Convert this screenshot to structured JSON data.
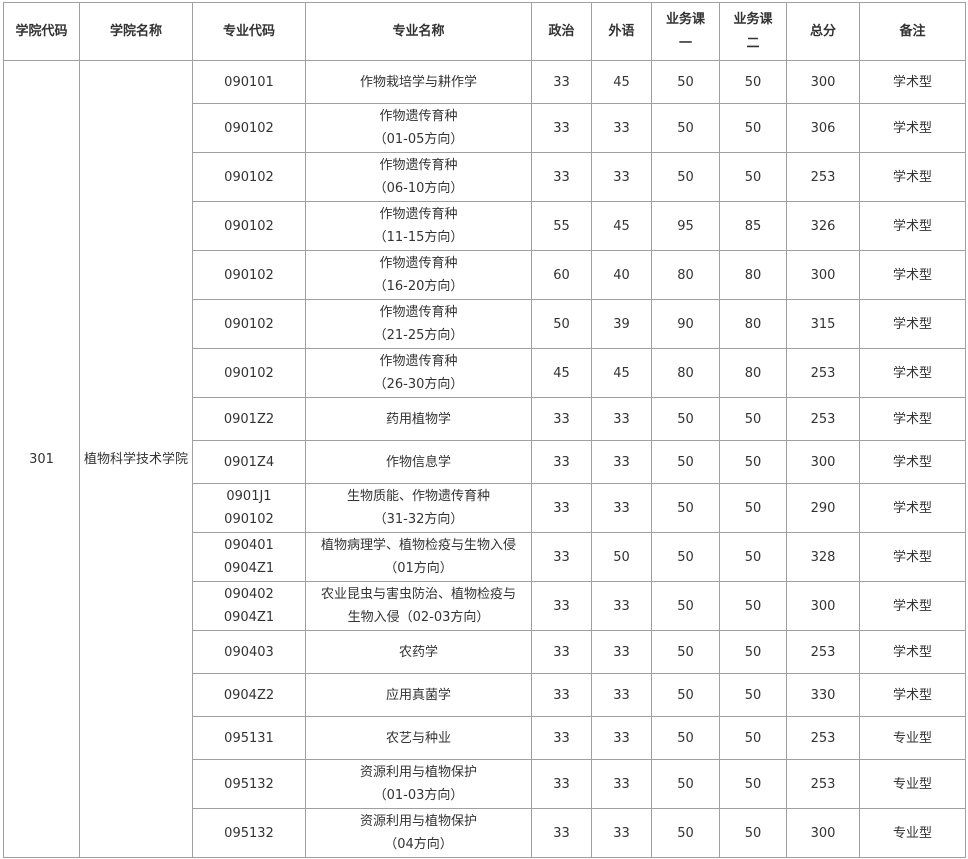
{
  "header": {
    "columns": [
      "学院代码",
      "学院名称",
      "专业代码",
      "专业名称",
      "政治",
      "外语",
      "业务课一",
      "业务课二",
      "总分",
      "备注"
    ]
  },
  "table": {
    "college_code": "301",
    "college_name": "植物科学技术学院",
    "rows": [
      [
        "090101",
        "作物栽培学与耕作学",
        33,
        45,
        50,
        50,
        300,
        "学术型"
      ],
      [
        "090102",
        "作物遗传育种\n（01-05方向）",
        33,
        33,
        50,
        50,
        306,
        "学术型"
      ],
      [
        "090102",
        "作物遗传育种\n（06-10方向）",
        33,
        33,
        50,
        50,
        253,
        "学术型"
      ],
      [
        "090102",
        "作物遗传育种\n（11-15方向）",
        55,
        45,
        95,
        85,
        326,
        "学术型"
      ],
      [
        "090102",
        "作物遗传育种\n（16-20方向）",
        60,
        40,
        80,
        80,
        300,
        "学术型"
      ],
      [
        "090102",
        "作物遗传育种\n（21-25方向）",
        50,
        39,
        90,
        80,
        315,
        "学术型"
      ],
      [
        "090102",
        "作物遗传育种\n（26-30方向）",
        45,
        45,
        80,
        80,
        253,
        "学术型"
      ],
      [
        "0901Z2",
        "药用植物学",
        33,
        33,
        50,
        50,
        253,
        "学术型"
      ],
      [
        "0901Z4",
        "作物信息学",
        33,
        33,
        50,
        50,
        300,
        "学术型"
      ],
      [
        "0901J1\n090102",
        "生物质能、作物遗传育种\n（31-32方向）",
        33,
        33,
        50,
        50,
        290,
        "学术型"
      ],
      [
        "090401\n0904Z1",
        "植物病理学、植物检疫与生物入侵\n（01方向）",
        33,
        50,
        50,
        50,
        328,
        "学术型"
      ],
      [
        "090402\n0904Z1",
        "农业昆虫与害虫防治、植物检疫与\n生物入侵（02-03方向）",
        33,
        33,
        50,
        50,
        300,
        "学术型"
      ],
      [
        "090403",
        "农药学",
        33,
        33,
        50,
        50,
        253,
        "学术型"
      ],
      [
        "0904Z2",
        "应用真菌学",
        33,
        33,
        50,
        50,
        330,
        "学术型"
      ],
      [
        "095131",
        "农艺与种业",
        33,
        33,
        50,
        50,
        253,
        "专业型"
      ],
      [
        "095132",
        "资源利用与植物保护\n（01-03方向）",
        33,
        33,
        50,
        50,
        253,
        "专业型"
      ],
      [
        "095132",
        "资源利用与植物保护\n（04方向）",
        33,
        33,
        50,
        50,
        300,
        "专业型"
      ]
    ]
  }
}
